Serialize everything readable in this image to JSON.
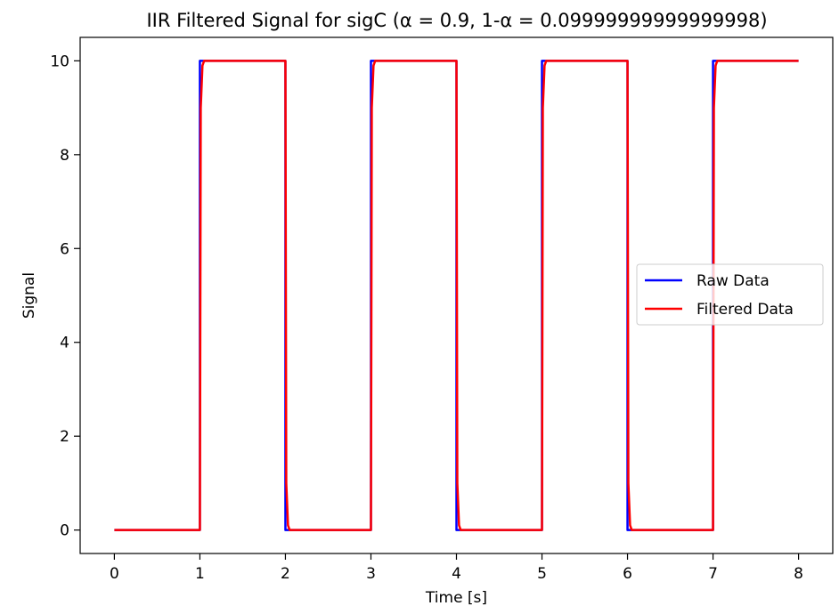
{
  "chart_data": {
    "type": "line",
    "title": "IIR Filtered Signal for sigC (α = 0.9, 1-α = 0.09999999999999998)",
    "xlabel": "Time [s]",
    "ylabel": "Signal",
    "xlim": [
      -0.4,
      8.4
    ],
    "ylim": [
      -0.5,
      10.5
    ],
    "xticks": [
      0,
      1,
      2,
      3,
      4,
      5,
      6,
      7,
      8
    ],
    "yticks": [
      0,
      2,
      4,
      6,
      8,
      10
    ],
    "grid": false,
    "legend_position": "center-right",
    "series": [
      {
        "name": "Raw Data",
        "color": "#0000ff",
        "x": [
          0,
          1,
          1,
          2,
          2,
          3,
          3,
          4,
          4,
          5,
          5,
          6,
          6,
          7,
          7,
          8
        ],
        "y": [
          0,
          0,
          10,
          10,
          0,
          0,
          10,
          10,
          0,
          0,
          10,
          10,
          0,
          0,
          10,
          10
        ]
      },
      {
        "name": "Filtered Data",
        "color": "#ff0000",
        "x": [
          0,
          1,
          1.01,
          1.03,
          1.05,
          2,
          2.01,
          2.03,
          2.05,
          3,
          3.01,
          3.03,
          3.05,
          4,
          4.01,
          4.03,
          4.05,
          5,
          5.01,
          5.03,
          5.05,
          6,
          6.01,
          6.03,
          6.05,
          7,
          7.01,
          7.03,
          7.05,
          8
        ],
        "y": [
          0,
          0,
          9,
          9.9,
          10,
          10,
          1,
          0.1,
          0,
          0,
          9,
          9.9,
          10,
          10,
          1,
          0.1,
          0,
          0,
          9,
          9.9,
          10,
          10,
          1,
          0.1,
          0,
          0,
          9,
          9.9,
          10,
          10
        ]
      }
    ]
  }
}
